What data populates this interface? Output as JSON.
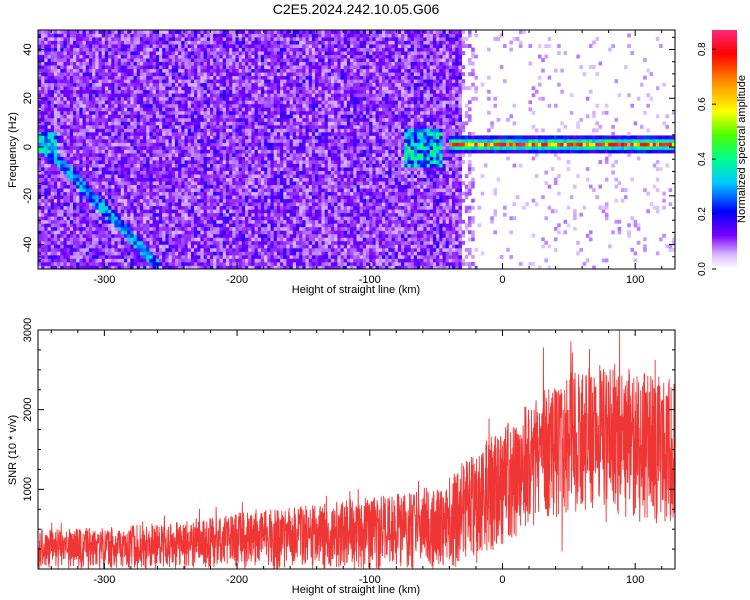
{
  "title": "C2E5.2024.242.10.05.G06",
  "colors": {
    "spectrogram_noise": "#6a00ff",
    "snr_line": "#f03535",
    "axis": "#000000"
  },
  "chart_data": [
    {
      "type": "heatmap",
      "name": "spectrogram",
      "xlabel": "Height of straight line (km)",
      "ylabel": "Frequency (Hz)",
      "xlim": [
        -350,
        130
      ],
      "ylim": [
        -50,
        48
      ],
      "xticks": [
        -300,
        -200,
        -100,
        0,
        100
      ],
      "xtick_labels": [
        "-300",
        "-200",
        "-100",
        "0",
        "100"
      ],
      "yticks": [
        -40,
        -20,
        0,
        20,
        40
      ],
      "ytick_labels": [
        "-40",
        "-20",
        "0",
        "20",
        "40"
      ],
      "colorbar": {
        "label": "Normalized spectral amplitude",
        "range": [
          0.0,
          0.87
        ],
        "ticks": [
          0.0,
          0.2,
          0.4,
          0.6,
          0.8
        ],
        "tick_labels": [
          "0.0",
          "0.2",
          "0.4",
          "0.6",
          "0.8"
        ],
        "colormap": "rainbow (purple to red)"
      },
      "features": {
        "noise_region_x": [
          -350,
          -30
        ],
        "signal_line_x": [
          -40,
          130
        ],
        "signal_frequency_hz": 1,
        "signal_amplitude_peak": 0.85,
        "diagonal_trace": {
          "x": [
            -350,
            -260
          ],
          "y": [
            3,
            -48
          ]
        }
      }
    },
    {
      "type": "line",
      "name": "snr",
      "xlabel": "Height of straight line (km)",
      "ylabel": "SNR (10 * v/v)",
      "xlim": [
        -350,
        130
      ],
      "ylim": [
        0,
        3000
      ],
      "xticks": [
        -300,
        -200,
        -100,
        0,
        100
      ],
      "xtick_labels": [
        "-300",
        "-200",
        "-100",
        "0",
        "100"
      ],
      "yticks": [
        1000,
        2000,
        3000
      ],
      "ytick_labels": [
        "1000",
        "2000",
        "3000"
      ],
      "envelope": {
        "x": [
          -350,
          -300,
          -250,
          -200,
          -150,
          -100,
          -50,
          -40,
          -20,
          0,
          20,
          50,
          80,
          100,
          130
        ],
        "lower": [
          0,
          0,
          0,
          0,
          0,
          0,
          0,
          0,
          100,
          300,
          500,
          700,
          700,
          600,
          500
        ],
        "upper": [
          500,
          520,
          580,
          700,
          800,
          900,
          1000,
          1200,
          1500,
          1800,
          2100,
          2500,
          2600,
          2500,
          2400
        ]
      }
    }
  ]
}
